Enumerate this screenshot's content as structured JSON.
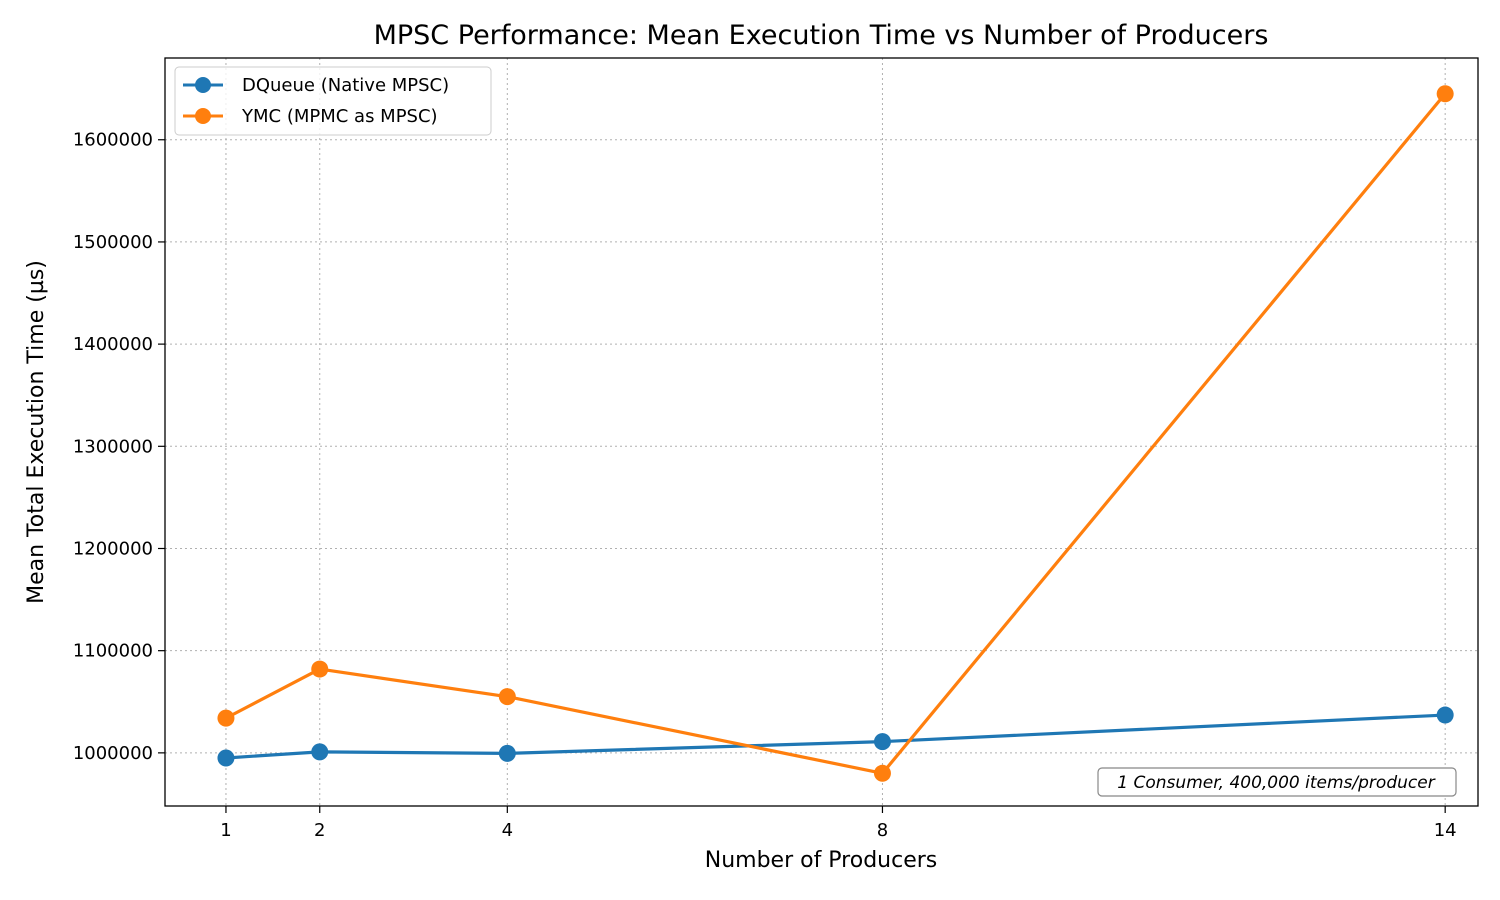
{
  "chart_data": {
    "type": "line",
    "title": "MPSC Performance: Mean Execution Time vs Number of Producers",
    "xlabel": "Number of Producers",
    "ylabel": "Mean Total Execution Time (µs)",
    "x": [
      1,
      2,
      4,
      8,
      14
    ],
    "x_ticks": [
      "1",
      "2",
      "4",
      "8",
      "14"
    ],
    "y_ticks": [
      1000000,
      1100000,
      1200000,
      1300000,
      1400000,
      1500000,
      1600000
    ],
    "xlim": [
      0.35,
      14.35
    ],
    "ylim": [
      948000,
      1680000
    ],
    "grid": true,
    "legend_position": "top-left",
    "series": [
      {
        "name": "DQueue (Native MPSC)",
        "color": "#1f77b4",
        "values": [
          995000,
          1001000,
          999500,
          1011000,
          1037000
        ]
      },
      {
        "name": "YMC (MPMC as MPSC)",
        "color": "#ff7f0e",
        "values": [
          1034000,
          1082000,
          1055000,
          980000,
          1645000
        ]
      }
    ],
    "annotation": "1 Consumer, 400,000 items/producer"
  }
}
